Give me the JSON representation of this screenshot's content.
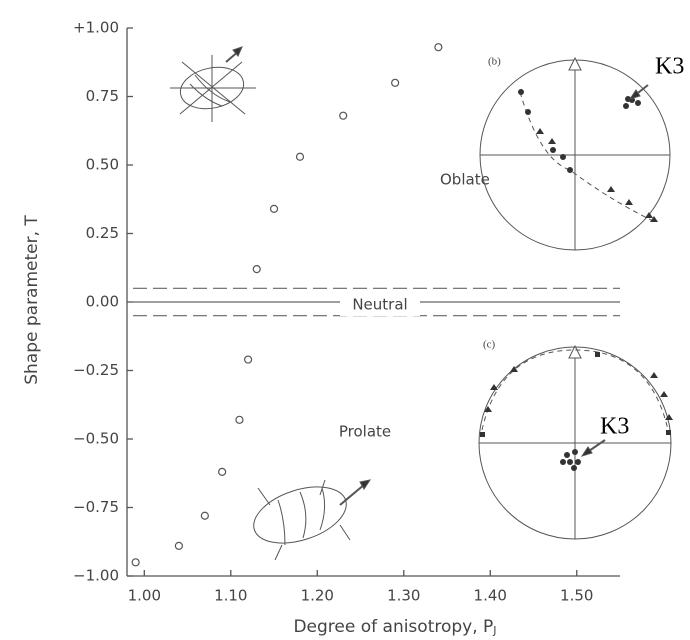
{
  "chart_data": {
    "type": "scatter",
    "ylabel": "Shape parameter, T",
    "xlabel": "Degree of anisotropy, P",
    "xlabel_subscript": "J",
    "x": [
      0.99,
      1.04,
      1.07,
      1.09,
      1.11,
      1.12,
      1.13,
      1.15,
      1.18,
      1.23,
      1.29,
      1.34
    ],
    "values": [
      -0.95,
      -0.89,
      -0.78,
      -0.62,
      -0.43,
      -0.21,
      0.12,
      0.34,
      0.53,
      0.68,
      0.8,
      0.93
    ],
    "color": "#555555",
    "xlim": [
      0.98,
      1.55
    ],
    "ylim": [
      -1,
      1
    ],
    "xticks": [
      {
        "value": 1,
        "label": "1.00"
      },
      {
        "value": 1.1,
        "label": "1.10"
      },
      {
        "value": 1.2,
        "label": "1.20"
      },
      {
        "value": 1.3,
        "label": "1.30"
      },
      {
        "value": 1.4,
        "label": "1.40"
      },
      {
        "value": 1.5,
        "label": "1.50"
      }
    ],
    "yticks": [
      {
        "value": -1,
        "label": "−1.00"
      },
      {
        "value": -0.75,
        "label": "−0.75"
      },
      {
        "value": -0.5,
        "label": "−0.50"
      },
      {
        "value": -0.25,
        "label": "−0.25"
      },
      {
        "value": 0,
        "label": "0.00"
      },
      {
        "value": 0.25,
        "label": "0.25"
      },
      {
        "value": 0.5,
        "label": "0.50"
      },
      0.75,
      {
        "value": 1,
        "label": "+1.00"
      }
    ],
    "neutral_lines": [
      -0.05,
      0,
      0.05
    ],
    "annotations": [
      "Oblate",
      "Neutral",
      "Prolate",
      "(b)",
      "(c)",
      "K3",
      "K3"
    ]
  }
}
